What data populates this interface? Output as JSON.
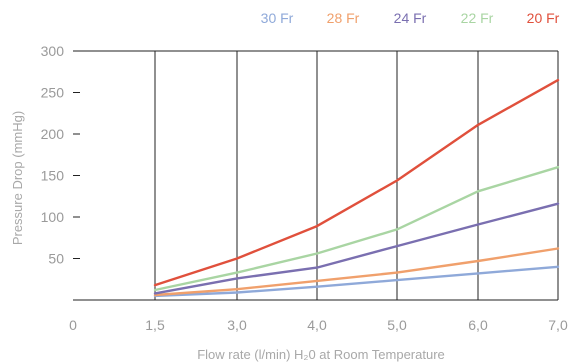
{
  "chart_data": {
    "type": "line",
    "xlabel": "Flow rate (l/min) H₂0 at Room Temperature",
    "ylabel": "Pressure Drop (mmHg)",
    "x_ticks": [
      "0",
      "1,5",
      "3,0",
      "4,0",
      "5,0",
      "6,0",
      "7,0"
    ],
    "y_ticks": [
      "50",
      "100",
      "150",
      "200",
      "250",
      "300"
    ],
    "ylim": [
      0,
      300
    ],
    "legend_position": "top-right",
    "grid": "vertical",
    "x": [
      1.5,
      3.0,
      4.0,
      5.0,
      6.0,
      7.0
    ],
    "series": [
      {
        "name": "30 Fr",
        "color": "#8fa9d9",
        "values": [
          5,
          9,
          16,
          24,
          32,
          40
        ]
      },
      {
        "name": "28 Fr",
        "color": "#f0a06c",
        "values": [
          6,
          13,
          23,
          33,
          47,
          62
        ]
      },
      {
        "name": "24 Fr",
        "color": "#7a6fb0",
        "values": [
          8,
          26,
          39,
          65,
          91,
          116
        ]
      },
      {
        "name": "22 Fr",
        "color": "#a9d5a3",
        "values": [
          12,
          33,
          56,
          85,
          131,
          160
        ]
      },
      {
        "name": "20 Fr",
        "color": "#e0503c",
        "values": [
          18,
          50,
          89,
          144,
          211,
          265
        ]
      }
    ]
  }
}
